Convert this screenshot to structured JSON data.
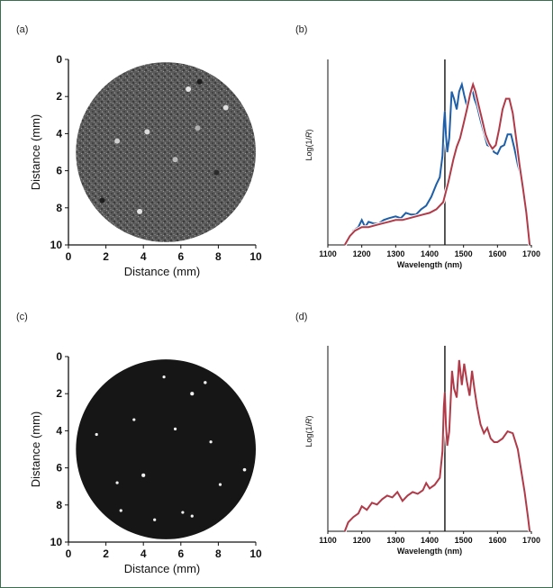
{
  "chart_data": [
    {
      "panel": "(a)",
      "type": "heatmap",
      "title": "",
      "xlabel": "Distance (mm)",
      "ylabel": "Distance (mm)",
      "xlim": [
        0,
        10
      ],
      "ylim": [
        0,
        10
      ],
      "xticks": [
        "0",
        "2",
        "4",
        "6",
        "8",
        "10"
      ],
      "yticks": [
        "0",
        "2",
        "4",
        "6",
        "8",
        "10"
      ],
      "description_colormap": "grayscale",
      "background": "#4a4a4a"
    },
    {
      "panel": "(b)",
      "type": "line",
      "xlabel": "Wavelength (nm)",
      "ylabel": "Log(1/R)",
      "ylabel_italic_part": "R",
      "xlim": [
        1100,
        1700
      ],
      "xticks": [
        "1100",
        "1200",
        "1300",
        "1400",
        "1500",
        "1600",
        "1700"
      ],
      "marker_x": 1445,
      "series": [
        {
          "color": "#1f5fa8",
          "x": [
            1150,
            1160,
            1175,
            1190,
            1200,
            1210,
            1220,
            1235,
            1250,
            1265,
            1280,
            1300,
            1315,
            1330,
            1345,
            1360,
            1375,
            1390,
            1405,
            1420,
            1430,
            1438,
            1442,
            1445,
            1448,
            1452,
            1458,
            1465,
            1472,
            1480,
            1487,
            1495,
            1502,
            1510,
            1518,
            1525,
            1532,
            1540,
            1550,
            1560,
            1570,
            1580,
            1590,
            1600,
            1610,
            1620,
            1630,
            1640,
            1650,
            1660,
            1670,
            1680,
            1690,
            1695
          ],
          "y": [
            0.0,
            0.03,
            0.08,
            0.1,
            0.14,
            0.1,
            0.13,
            0.12,
            0.12,
            0.14,
            0.15,
            0.16,
            0.15,
            0.18,
            0.17,
            0.17,
            0.2,
            0.22,
            0.27,
            0.34,
            0.38,
            0.5,
            0.68,
            0.75,
            0.62,
            0.52,
            0.6,
            0.86,
            0.82,
            0.76,
            0.86,
            0.9,
            0.84,
            0.78,
            0.85,
            0.88,
            0.82,
            0.78,
            0.7,
            0.63,
            0.56,
            0.55,
            0.52,
            0.51,
            0.55,
            0.56,
            0.62,
            0.62,
            0.54,
            0.45,
            0.38,
            0.28,
            0.1,
            0.0
          ]
        },
        {
          "color": "#b03a48",
          "x": [
            1150,
            1165,
            1180,
            1200,
            1220,
            1240,
            1260,
            1280,
            1300,
            1320,
            1340,
            1360,
            1380,
            1400,
            1420,
            1440,
            1455,
            1470,
            1480,
            1490,
            1500,
            1510,
            1520,
            1528,
            1535,
            1545,
            1555,
            1565,
            1575,
            1585,
            1595,
            1605,
            1615,
            1625,
            1635,
            1645,
            1655,
            1665,
            1675,
            1685,
            1695
          ],
          "y": [
            0.0,
            0.05,
            0.08,
            0.1,
            0.1,
            0.11,
            0.12,
            0.13,
            0.14,
            0.14,
            0.15,
            0.16,
            0.17,
            0.18,
            0.2,
            0.24,
            0.35,
            0.48,
            0.55,
            0.6,
            0.68,
            0.76,
            0.85,
            0.9,
            0.86,
            0.78,
            0.7,
            0.62,
            0.57,
            0.54,
            0.56,
            0.65,
            0.76,
            0.82,
            0.82,
            0.74,
            0.6,
            0.45,
            0.32,
            0.18,
            0.0
          ]
        }
      ]
    },
    {
      "panel": "(c)",
      "type": "heatmap",
      "title": "",
      "xlabel": "Distance (mm)",
      "ylabel": "Distance (mm)",
      "xlim": [
        0,
        10
      ],
      "ylim": [
        0,
        10
      ],
      "xticks": [
        "0",
        "2",
        "4",
        "6",
        "8",
        "10"
      ],
      "yticks": [
        "0",
        "2",
        "4",
        "6",
        "8",
        "10"
      ],
      "background": "#151515",
      "spots": [
        {
          "x": 6.6,
          "y": 2.0,
          "r": 0.18
        },
        {
          "x": 7.3,
          "y": 1.4,
          "r": 0.15
        },
        {
          "x": 4.0,
          "y": 6.4,
          "r": 0.18
        },
        {
          "x": 9.4,
          "y": 6.1,
          "r": 0.16
        },
        {
          "x": 2.8,
          "y": 8.3,
          "r": 0.14
        },
        {
          "x": 6.6,
          "y": 8.6,
          "r": 0.12
        },
        {
          "x": 1.5,
          "y": 4.2,
          "r": 0.08
        },
        {
          "x": 3.5,
          "y": 3.4,
          "r": 0.07
        },
        {
          "x": 5.7,
          "y": 3.9,
          "r": 0.07
        },
        {
          "x": 8.1,
          "y": 6.9,
          "r": 0.08
        },
        {
          "x": 5.1,
          "y": 1.1,
          "r": 0.07
        },
        {
          "x": 7.6,
          "y": 4.6,
          "r": 0.07
        },
        {
          "x": 4.6,
          "y": 8.8,
          "r": 0.08
        },
        {
          "x": 2.6,
          "y": 6.8,
          "r": 0.07
        },
        {
          "x": 6.1,
          "y": 8.4,
          "r": 0.06
        }
      ]
    },
    {
      "panel": "(d)",
      "type": "line",
      "xlabel": "Wavelength (nm)",
      "ylabel": "Log(1/R)",
      "ylabel_italic_part": "R",
      "xlim": [
        1100,
        1700
      ],
      "xticks": [
        "1100",
        "1200",
        "1300",
        "1400",
        "1500",
        "1600",
        "1700"
      ],
      "marker_x": 1445,
      "series": [
        {
          "color": "#b03a48",
          "x": [
            1150,
            1160,
            1175,
            1190,
            1200,
            1215,
            1230,
            1245,
            1260,
            1275,
            1290,
            1305,
            1320,
            1335,
            1350,
            1365,
            1380,
            1390,
            1400,
            1415,
            1430,
            1438,
            1442,
            1445,
            1448,
            1452,
            1458,
            1466,
            1472,
            1480,
            1487,
            1495,
            1502,
            1510,
            1518,
            1525,
            1532,
            1540,
            1550,
            1560,
            1570,
            1580,
            1590,
            1600,
            1615,
            1630,
            1645,
            1660,
            1670,
            1680,
            1690,
            1695
          ],
          "y": [
            0.0,
            0.05,
            0.08,
            0.1,
            0.14,
            0.12,
            0.16,
            0.15,
            0.18,
            0.2,
            0.19,
            0.22,
            0.17,
            0.2,
            0.22,
            0.21,
            0.23,
            0.27,
            0.24,
            0.26,
            0.3,
            0.45,
            0.7,
            0.78,
            0.6,
            0.48,
            0.56,
            0.9,
            0.8,
            0.75,
            0.96,
            0.82,
            0.94,
            0.84,
            0.76,
            0.9,
            0.8,
            0.7,
            0.6,
            0.55,
            0.58,
            0.52,
            0.5,
            0.5,
            0.52,
            0.56,
            0.55,
            0.46,
            0.34,
            0.22,
            0.08,
            0.0
          ]
        }
      ]
    }
  ]
}
